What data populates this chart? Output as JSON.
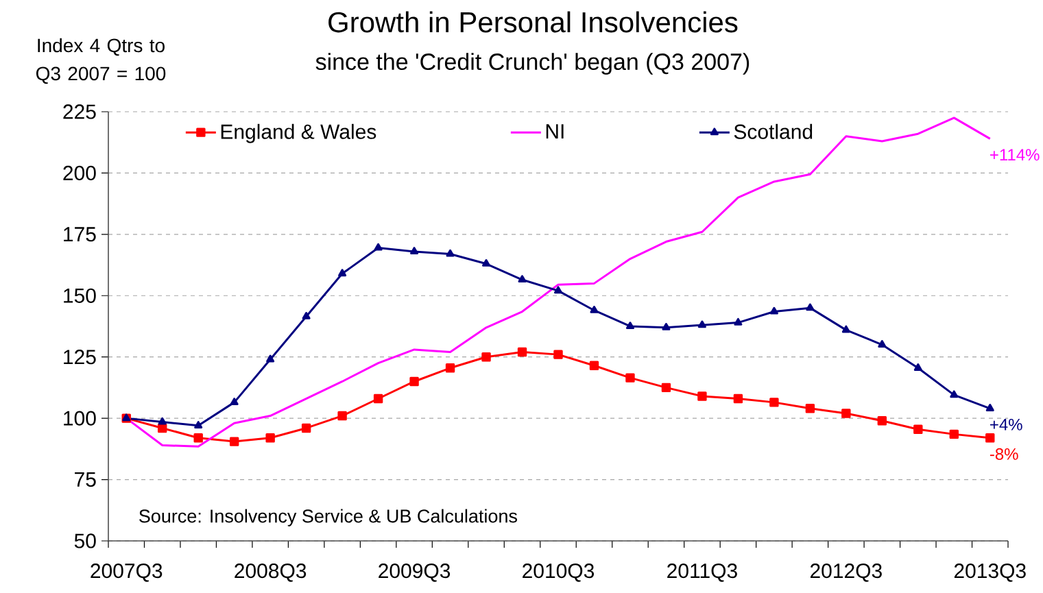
{
  "chart_data": {
    "type": "line",
    "title": "Growth in Personal Insolvencies",
    "subtitle": "since the 'Credit Crunch' began (Q3 2007)",
    "ylabel": "Index 4 Qtrs to Q3 2007 = 100",
    "categories": [
      "2007Q3",
      null,
      null,
      null,
      "2008Q3",
      null,
      null,
      null,
      "2009Q3",
      null,
      null,
      null,
      "2010Q3",
      null,
      null,
      null,
      "2011Q3",
      null,
      null,
      null,
      "2012Q3",
      null,
      null,
      null,
      "2013Q3"
    ],
    "series": [
      {
        "name": "England & Wales",
        "color": "#ff0000",
        "marker": "square",
        "values": [
          100,
          96,
          92,
          90.5,
          92,
          96,
          101,
          108,
          115,
          120.5,
          125,
          127,
          126,
          121.5,
          116.5,
          112.5,
          109,
          108,
          106.5,
          104,
          102,
          99,
          95.5,
          93.5,
          92
        ]
      },
      {
        "name": "NI",
        "color": "#ff00ff",
        "marker": "none",
        "values": [
          100,
          89,
          88.5,
          98,
          101,
          108,
          115,
          122.5,
          128,
          127,
          137,
          143.5,
          154.5,
          155,
          165,
          172,
          176,
          190,
          196.5,
          199.5,
          215,
          213,
          216,
          222.5,
          214
        ]
      },
      {
        "name": "Scotland",
        "color": "#000080",
        "marker": "triangle",
        "values": [
          100,
          98.5,
          97,
          106.5,
          124,
          141.5,
          159,
          169.5,
          168,
          167,
          163,
          156.5,
          152,
          144,
          137.5,
          137,
          138,
          139,
          143.5,
          145,
          136,
          130,
          120.5,
          109.5,
          104
        ]
      }
    ],
    "ylim": [
      50,
      225
    ],
    "yticks": [
      50,
      75,
      100,
      125,
      150,
      175,
      200,
      225
    ],
    "grid": "y",
    "legend": "top",
    "annotations": [
      {
        "text": "-8%",
        "x": "2013Q3",
        "y": 92
      },
      {
        "text": "+114%",
        "x": "2013Q3",
        "y": 214
      },
      {
        "text": "+4%",
        "x": "2013Q3",
        "y": 104
      },
      "Source: Insolvency Service & UB Calculations"
    ]
  }
}
